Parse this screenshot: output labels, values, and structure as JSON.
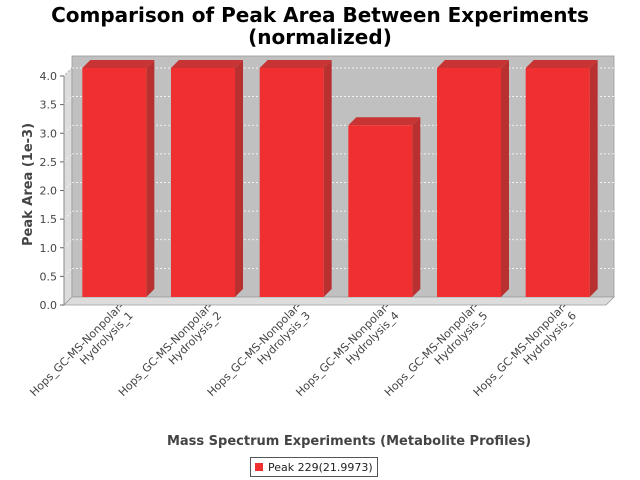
{
  "chart_data": {
    "type": "bar",
    "title": [
      "Comparison of Peak Area Between Experiments",
      "(normalized)"
    ],
    "xlabel": "Mass Spectrum Experiments (Metabolite Profiles)",
    "ylabel": "Peak Area (1e-3)",
    "categories": [
      [
        "Hops_GC-MS-Nonpolar-",
        "Hydrolysis_1"
      ],
      [
        "Hops_GC-MS-Nonpolar-",
        "Hydrolysis_2"
      ],
      [
        "Hops_GC-MS-Nonpolar-",
        "Hydrolysis_3"
      ],
      [
        "Hops_GC-MS-Nonpolar-",
        "Hydrolysis_4"
      ],
      [
        "Hops_GC-MS-Nonpolar-",
        "Hydrolysis_5"
      ],
      [
        "Hops_GC-MS-Nonpolar-",
        "Hydrolysis_6"
      ]
    ],
    "series": [
      {
        "name": "Peak 229(21.9973)",
        "color": "#f03030",
        "values": [
          4.0,
          4.0,
          4.0,
          3.0,
          4.0,
          4.0
        ]
      }
    ],
    "ylim": [
      0,
      4.0
    ],
    "yticks": [
      "0.0",
      "0.5",
      "1.0",
      "1.5",
      "2.0",
      "2.5",
      "3.0",
      "3.5",
      "4.0"
    ],
    "grid": true,
    "legend_position": "bottom"
  }
}
